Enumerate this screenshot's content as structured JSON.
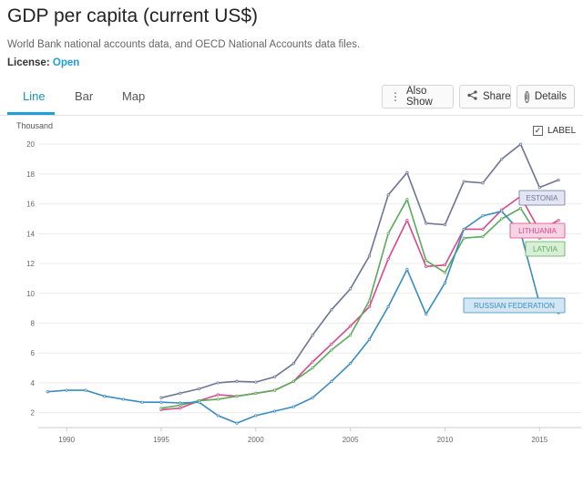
{
  "header": {
    "title": "GDP per capita (current US$)",
    "source": "World Bank national accounts data, and OECD National Accounts data files.",
    "license_label": "License:",
    "license_value": "Open"
  },
  "tabs": [
    {
      "label": "Line",
      "active": true
    },
    {
      "label": "Bar",
      "active": false
    },
    {
      "label": "Map",
      "active": false
    }
  ],
  "toolbar": {
    "also_show": "Also Show",
    "share": "Share",
    "details": "Details",
    "also_show_icon": "vertical-dots-icon",
    "share_icon": "share-icon",
    "details_icon": "info-icon"
  },
  "label_toggle": {
    "label": "LABEL",
    "checked": true
  },
  "chart_data": {
    "type": "line",
    "ylabel": "Thousand",
    "xlabel": "",
    "ylim": [
      1,
      20.5
    ],
    "xlim": [
      1988.5,
      2017.2
    ],
    "yticks": [
      2,
      4,
      6,
      8,
      10,
      12,
      14,
      16,
      18,
      20
    ],
    "xticks": [
      1990,
      1995,
      2000,
      2005,
      2010,
      2015
    ],
    "grid": "horizontal",
    "legend": "labels-at-line-ends",
    "series": [
      {
        "name": "ESTONIA",
        "color": "#6b7596",
        "label_bg": "#e3e5f2",
        "x": [
          1995,
          1996,
          1997,
          1998,
          1999,
          2000,
          2001,
          2002,
          2003,
          2004,
          2005,
          2006,
          2007,
          2008,
          2009,
          2010,
          2011,
          2012,
          2013,
          2014,
          2015,
          2016
        ],
        "y": [
          3.0,
          3.3,
          3.6,
          4.0,
          4.1,
          4.05,
          4.4,
          5.3,
          7.2,
          8.9,
          10.3,
          12.5,
          16.6,
          18.1,
          14.7,
          14.6,
          17.5,
          17.4,
          19.0,
          20.0,
          17.1,
          17.6
        ]
      },
      {
        "name": "LITHUANIA",
        "color": "#d8478a",
        "label_bg": "#f7d3e4",
        "x": [
          1995,
          1996,
          1997,
          1998,
          1999,
          2000,
          2001,
          2002,
          2003,
          2004,
          2005,
          2006,
          2007,
          2008,
          2009,
          2010,
          2011,
          2012,
          2013,
          2014,
          2015,
          2016
        ],
        "y": [
          2.2,
          2.3,
          2.8,
          3.2,
          3.1,
          3.3,
          3.5,
          4.1,
          5.4,
          6.6,
          7.8,
          9.1,
          12.3,
          14.9,
          11.8,
          11.9,
          14.3,
          14.3,
          15.6,
          16.5,
          14.2,
          14.9
        ]
      },
      {
        "name": "LATVIA",
        "color": "#5aaa5a",
        "label_bg": "#d8efd6",
        "x": [
          1995,
          1996,
          1997,
          1998,
          1999,
          2000,
          2001,
          2002,
          2003,
          2004,
          2005,
          2006,
          2007,
          2008,
          2009,
          2010,
          2011,
          2012,
          2013,
          2014,
          2015,
          2016
        ],
        "y": [
          2.3,
          2.5,
          2.8,
          2.9,
          3.1,
          3.3,
          3.5,
          4.1,
          5.0,
          6.2,
          7.2,
          9.5,
          14.0,
          16.3,
          12.2,
          11.4,
          13.7,
          13.8,
          15.0,
          15.7,
          13.7,
          14.1
        ]
      },
      {
        "name": "RUSSIAN FEDERATION",
        "color": "#3a8bbf",
        "label_bg": "#d3e6f4",
        "x": [
          1989,
          1990,
          1991,
          1992,
          1993,
          1994,
          1995,
          1996,
          1997,
          1998,
          1999,
          2000,
          2001,
          2002,
          2003,
          2004,
          2005,
          2006,
          2007,
          2008,
          2009,
          2010,
          2011,
          2012,
          2013,
          2014,
          2015,
          2016
        ],
        "y": [
          3.4,
          3.5,
          3.5,
          3.1,
          2.9,
          2.7,
          2.7,
          2.65,
          2.7,
          1.8,
          1.3,
          1.8,
          2.1,
          2.4,
          3.0,
          4.1,
          5.3,
          6.9,
          9.1,
          11.6,
          8.6,
          10.7,
          14.3,
          15.2,
          15.5,
          14.1,
          9.3,
          8.7
        ]
      }
    ]
  }
}
